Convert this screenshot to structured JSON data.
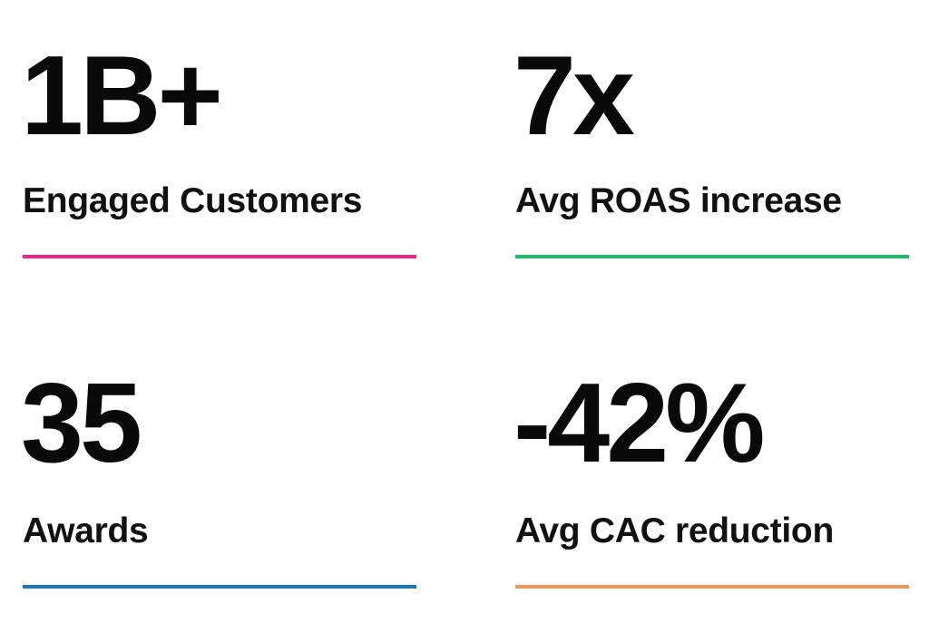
{
  "stats": [
    {
      "value": "1B+",
      "label": "Engaged Customers",
      "color": "#e9268f"
    },
    {
      "value": "7x",
      "label": "Avg ROAS increase",
      "color": "#1dbb62"
    },
    {
      "value": "35",
      "label": "Awards",
      "color": "#1877c2"
    },
    {
      "value": "-42%",
      "label": "Avg CAC reduction",
      "color": "#f2955a"
    }
  ]
}
